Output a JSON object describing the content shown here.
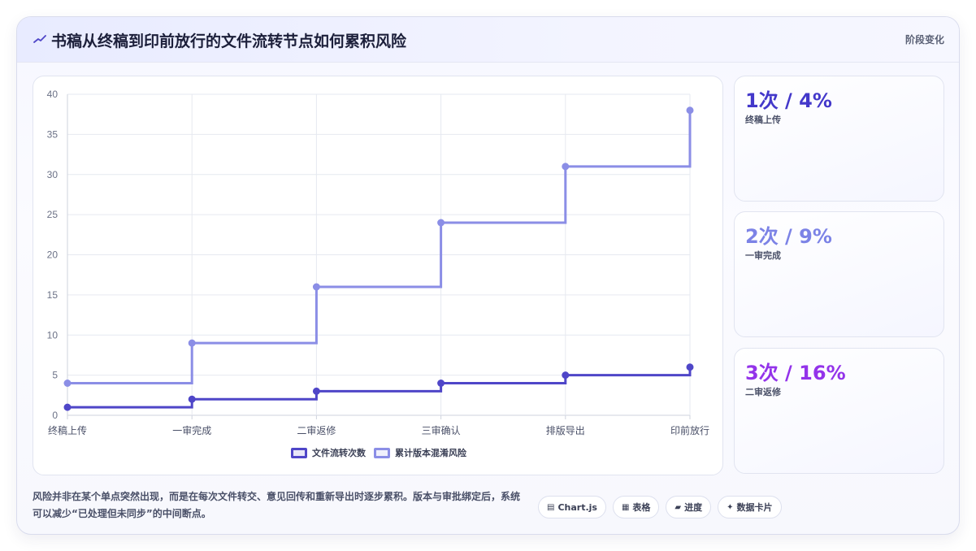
{
  "header": {
    "title": "书稿从终稿到印前放行的文件流转节点如何累积风险",
    "tag": "阶段变化",
    "icon": "trend-icon"
  },
  "chart_data": {
    "type": "line",
    "stepped": true,
    "categories": [
      "终稿上传",
      "一审完成",
      "二审返修",
      "三审确认",
      "排版导出",
      "印前放行"
    ],
    "series": [
      {
        "name": "文件流转次数",
        "values": [
          1,
          2,
          3,
          4,
          5,
          6
        ],
        "color": "#4f46c8"
      },
      {
        "name": "累计版本混淆风险",
        "values": [
          4,
          9,
          16,
          24,
          31,
          38
        ],
        "color": "#8b8ee6"
      }
    ],
    "ylim": [
      0,
      40
    ],
    "yticks": [
      "0",
      "5",
      "10",
      "15",
      "20",
      "25",
      "30",
      "35",
      "40"
    ],
    "grid": true,
    "legend_position": "bottom"
  },
  "stats": [
    {
      "value": "1次 / 4%",
      "label": "终稿上传",
      "color": "#4338ca"
    },
    {
      "value": "2次 / 9%",
      "label": "一审完成",
      "color": "#7c83e6"
    },
    {
      "value": "3次 / 16%",
      "label": "二审返修",
      "color": "#9333ea"
    }
  ],
  "footnote": "风险并非在某个单点突然出现，而是在每次文件转交、意见回传和重新导出时逐步累积。版本与审批绑定后，系统可以减少“已处理但未同步”的中间断点。",
  "chips": [
    {
      "icon": "▤",
      "label": "Chart.js"
    },
    {
      "icon": "▦",
      "label": "表格"
    },
    {
      "icon": "▰",
      "label": "进度"
    },
    {
      "icon": "✦",
      "label": "数据卡片"
    }
  ]
}
